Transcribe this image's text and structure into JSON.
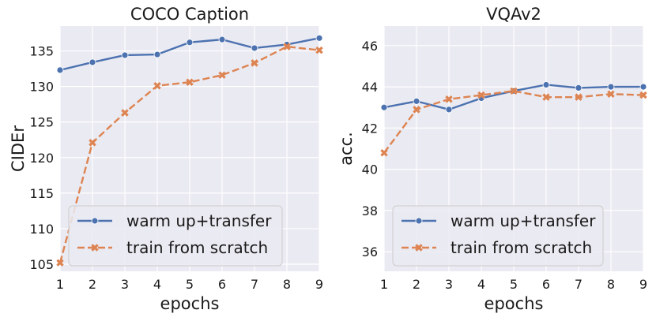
{
  "colors": {
    "plot_bg": "#EAEAF2",
    "grid": "#FFFFFF",
    "series_blue": "#4C72B0",
    "series_orange": "#DD8452",
    "legend_bg": "#EAEAF2",
    "legend_border": "#CCCCCC"
  },
  "chart_data": [
    {
      "type": "line",
      "title": "COCO Caption",
      "xlabel": "epochs",
      "ylabel": "CIDEr",
      "x": [
        1,
        2,
        3,
        4,
        5,
        6,
        7,
        8,
        9
      ],
      "xlim": [
        1,
        9
      ],
      "ylim": [
        104,
        138.5
      ],
      "xticks": [
        "1",
        "2",
        "3",
        "4",
        "5",
        "6",
        "7",
        "8",
        "9"
      ],
      "yticks": [
        105,
        110,
        115,
        120,
        125,
        130,
        135
      ],
      "grid": true,
      "legend_position": "lower-right",
      "series": [
        {
          "name": "warm up+transfer",
          "marker": "circle",
          "linestyle": "solid",
          "color": "#4C72B0",
          "values": [
            132.3,
            133.4,
            134.4,
            134.5,
            136.2,
            136.6,
            135.4,
            135.9,
            136.8
          ]
        },
        {
          "name": "train from scratch",
          "marker": "x",
          "linestyle": "dashed",
          "color": "#DD8452",
          "values": [
            105.2,
            122.1,
            126.3,
            130.1,
            130.6,
            131.6,
            133.3,
            135.6,
            135.1
          ]
        }
      ]
    },
    {
      "type": "line",
      "title": "VQAv2",
      "xlabel": "epochs",
      "ylabel": "acc.",
      "x": [
        1,
        2,
        3,
        4,
        5,
        6,
        7,
        8,
        9
      ],
      "xlim": [
        1,
        9
      ],
      "ylim": [
        35.05,
        46.95
      ],
      "xticks": [
        "1",
        "2",
        "3",
        "4",
        "5",
        "6",
        "7",
        "8",
        "9"
      ],
      "yticks": [
        36,
        38,
        40,
        42,
        44,
        46
      ],
      "grid": true,
      "legend_position": "lower-right",
      "series": [
        {
          "name": "warm up+transfer",
          "marker": "circle",
          "linestyle": "solid",
          "color": "#4C72B0",
          "values": [
            43.0,
            43.3,
            42.9,
            43.45,
            43.8,
            44.1,
            43.95,
            44.0,
            44.0
          ]
        },
        {
          "name": "train from scratch",
          "marker": "x",
          "linestyle": "dashed",
          "color": "#DD8452",
          "values": [
            40.8,
            42.9,
            43.4,
            43.6,
            43.8,
            43.5,
            43.5,
            43.65,
            43.6
          ]
        }
      ]
    }
  ]
}
